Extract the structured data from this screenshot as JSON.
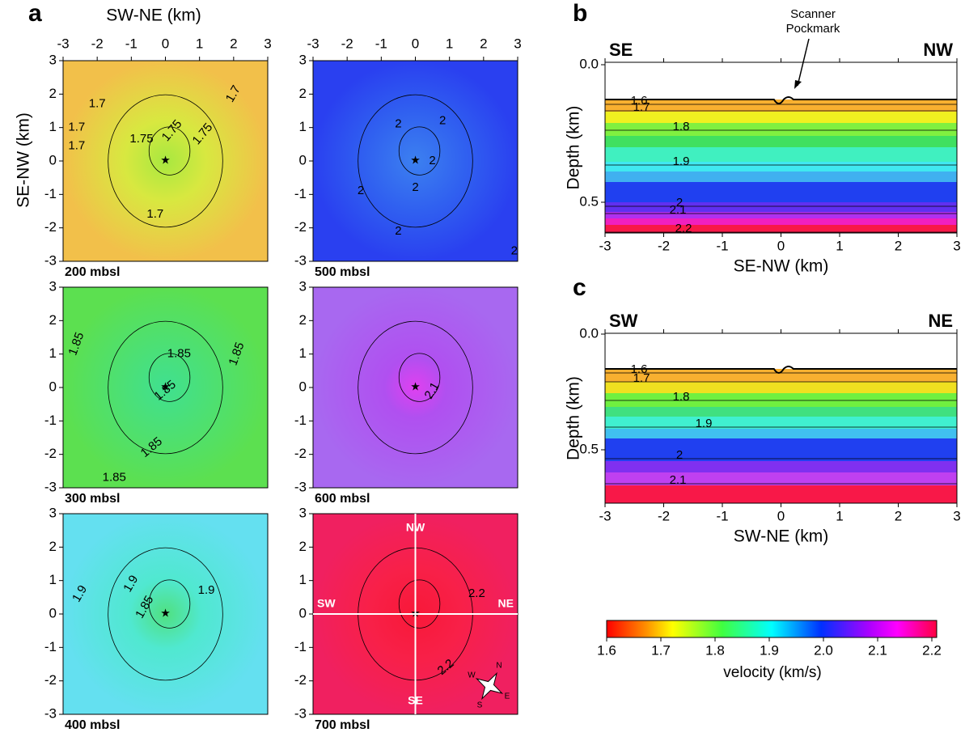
{
  "panel_labels": {
    "a": "a",
    "b": "b",
    "c": "c"
  },
  "panel_a": {
    "x_label": "SW-NE (km)",
    "y_label": "SE-NW (km)",
    "xticks": [
      -3,
      -2,
      -1,
      0,
      1,
      2,
      3
    ],
    "yticks": [
      -3,
      -2,
      -1,
      0,
      1,
      2,
      3
    ],
    "maps": [
      {
        "depth_label": "200 mbsl",
        "contour_labels": [
          1.7,
          1.7,
          1.7,
          1.75,
          1.75,
          1.75,
          1.7,
          1.7
        ]
      },
      {
        "depth_label": "300 mbsl",
        "contour_labels": [
          1.85,
          1.85,
          1.85,
          1.85,
          1.85,
          1.85
        ]
      },
      {
        "depth_label": "400 mbsl",
        "contour_labels": [
          1.9,
          1.9,
          1.9,
          1.85
        ]
      },
      {
        "depth_label": "500 mbsl",
        "contour_labels": [
          2,
          2,
          2,
          2,
          2,
          2,
          2
        ]
      },
      {
        "depth_label": "600 mbsl",
        "contour_labels": [
          2.1
        ]
      },
      {
        "depth_label": "700 mbsl",
        "contour_labels": [
          2.2,
          2.2
        ]
      }
    ],
    "cross_labels": [
      "NW",
      "NE",
      "SW",
      "SE"
    ],
    "compass_letters": [
      "N",
      "E",
      "S",
      "W"
    ]
  },
  "panel_b": {
    "left_label": "SE",
    "right_label": "NW",
    "annotation": [
      "Scanner",
      "Pockmark"
    ],
    "x_label": "SE-NW (km)",
    "y_label": "Depth (km)",
    "xticks": [
      -3,
      -2,
      -1,
      0,
      1,
      2,
      3
    ],
    "yticks": [
      {
        "value": 0,
        "label": "0.0"
      },
      0.5
    ],
    "contour_labels": [
      1.6,
      1.7,
      1.8,
      1.9,
      2,
      2.1,
      2.2
    ]
  },
  "panel_c": {
    "left_label": "SW",
    "right_label": "NE",
    "x_label": "SW-NE (km)",
    "y_label": "Depth (km)",
    "xticks": [
      -3,
      -2,
      -1,
      0,
      1,
      2,
      3
    ],
    "yticks": [
      {
        "value": 0,
        "label": "0.0"
      },
      0.5
    ],
    "contour_labels": [
      1.6,
      1.7,
      1.8,
      1.9,
      2,
      2.1
    ]
  },
  "colorbar": {
    "label": "velocity  (km/s)",
    "ticks": [
      1.6,
      1.7,
      1.8,
      1.9,
      {
        "value": 2,
        "label": "2.0"
      },
      2.1,
      2.2
    ]
  }
}
